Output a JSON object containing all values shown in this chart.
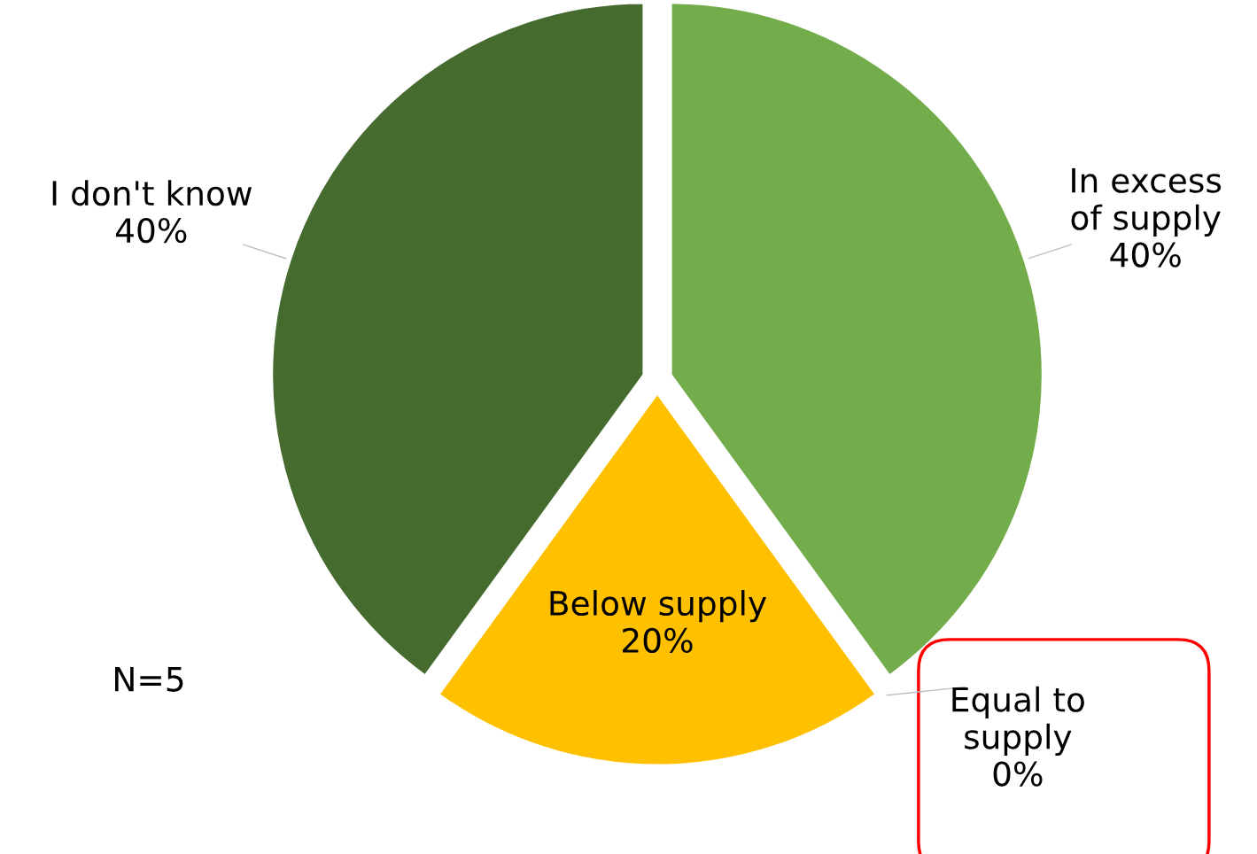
{
  "chart_data": {
    "type": "pie",
    "categories": [
      "In excess\nof supply",
      "Equal to\nsupply",
      "Below supply",
      "I don't know"
    ],
    "values": [
      40,
      0,
      20,
      40
    ],
    "value_labels": [
      "40%",
      "0%",
      "20%",
      "40%"
    ],
    "colors": [
      "#72ac4b",
      "#5b9bd5",
      "#ffc000",
      "#466b2f"
    ],
    "annotations": [
      "N=5"
    ]
  }
}
